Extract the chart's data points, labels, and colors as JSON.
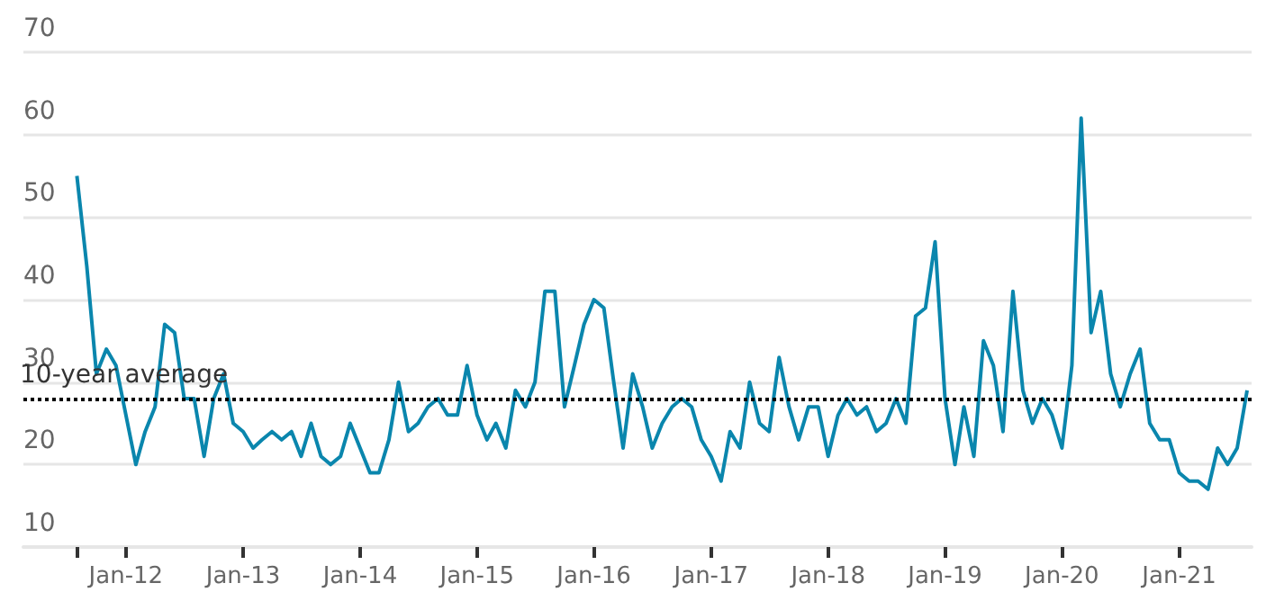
{
  "chart_data": {
    "type": "line",
    "x": [
      "2011-08",
      "2011-09",
      "2011-10",
      "2011-11",
      "2011-12",
      "2012-01",
      "2012-02",
      "2012-03",
      "2012-04",
      "2012-05",
      "2012-06",
      "2012-07",
      "2012-08",
      "2012-09",
      "2012-10",
      "2012-11",
      "2012-12",
      "2013-01",
      "2013-02",
      "2013-03",
      "2013-04",
      "2013-05",
      "2013-06",
      "2013-07",
      "2013-08",
      "2013-09",
      "2013-10",
      "2013-11",
      "2013-12",
      "2014-01",
      "2014-02",
      "2014-03",
      "2014-04",
      "2014-05",
      "2014-06",
      "2014-07",
      "2014-08",
      "2014-09",
      "2014-10",
      "2014-11",
      "2014-12",
      "2015-01",
      "2015-02",
      "2015-03",
      "2015-04",
      "2015-05",
      "2015-06",
      "2015-07",
      "2015-08",
      "2015-09",
      "2015-10",
      "2015-11",
      "2015-12",
      "2016-01",
      "2016-02",
      "2016-03",
      "2016-04",
      "2016-05",
      "2016-06",
      "2016-07",
      "2016-08",
      "2016-09",
      "2016-10",
      "2016-11",
      "2016-12",
      "2017-01",
      "2017-02",
      "2017-03",
      "2017-04",
      "2017-05",
      "2017-06",
      "2017-07",
      "2017-08",
      "2017-09",
      "2017-10",
      "2017-11",
      "2017-12",
      "2018-01",
      "2018-02",
      "2018-03",
      "2018-04",
      "2018-05",
      "2018-06",
      "2018-07",
      "2018-08",
      "2018-09",
      "2018-10",
      "2018-11",
      "2018-12",
      "2019-01",
      "2019-02",
      "2019-03",
      "2019-04",
      "2019-05",
      "2019-06",
      "2019-07",
      "2019-08",
      "2019-09",
      "2019-10",
      "2019-11",
      "2019-12",
      "2020-01",
      "2020-02",
      "2020-03",
      "2020-04",
      "2020-05",
      "2020-06",
      "2020-07",
      "2020-08",
      "2020-09",
      "2020-10",
      "2020-11",
      "2020-12",
      "2021-01",
      "2021-02",
      "2021-03",
      "2021-04",
      "2021-05",
      "2021-06",
      "2021-07",
      "2021-08"
    ],
    "series": [
      {
        "color": "#0a86ad",
        "values": [
          55,
          44,
          31,
          34,
          32,
          26,
          20,
          24,
          27,
          37,
          36,
          28,
          28,
          21,
          28,
          31,
          25,
          24,
          22,
          23,
          24,
          23,
          24,
          21,
          25,
          21,
          20,
          21,
          25,
          22,
          19,
          19,
          23,
          30,
          24,
          25,
          27,
          28,
          26,
          26,
          32,
          26,
          23,
          25,
          22,
          29,
          27,
          30,
          41,
          41,
          27,
          32,
          37,
          40,
          39,
          30.5,
          22,
          31,
          27,
          22,
          25,
          27,
          28,
          27,
          23,
          21,
          18,
          24,
          22,
          30,
          25,
          24,
          33,
          27,
          23,
          27,
          27,
          21,
          26,
          28,
          26,
          27,
          24,
          25,
          28,
          25,
          38,
          39,
          47,
          28,
          20,
          27,
          21,
          35,
          32,
          24,
          41,
          29,
          25,
          28,
          26,
          22,
          32,
          62,
          36,
          41,
          31,
          27,
          31,
          34,
          25,
          23,
          23,
          19,
          18,
          18,
          17,
          22,
          20,
          22,
          29
        ]
      }
    ],
    "xlim": [
      "2011-02-15",
      "2021-08-15"
    ],
    "xticks": [
      {
        "value": "2011-08",
        "label": null
      },
      {
        "value": "2012-01",
        "label": "Jan-12"
      },
      {
        "value": "2013-01",
        "label": "Jan-13"
      },
      {
        "value": "2014-01",
        "label": "Jan-14"
      },
      {
        "value": "2015-01",
        "label": "Jan-15"
      },
      {
        "value": "2016-01",
        "label": "Jan-16"
      },
      {
        "value": "2017-01",
        "label": "Jan-17"
      },
      {
        "value": "2018-01",
        "label": "Jan-18"
      },
      {
        "value": "2019-01",
        "label": "Jan-19"
      },
      {
        "value": "2020-01",
        "label": "Jan-20"
      },
      {
        "value": "2021-01",
        "label": "Jan-21"
      }
    ],
    "ylim": [
      10,
      70
    ],
    "yticks": [
      10,
      20,
      30,
      40,
      50,
      60,
      70
    ],
    "grid": "y",
    "marker": "none",
    "line_style": "solid",
    "ref_lines": [
      {
        "axis": "y",
        "value": 28,
        "label": "10-year average",
        "color": "#000000",
        "line_style": "dotted"
      }
    ]
  }
}
